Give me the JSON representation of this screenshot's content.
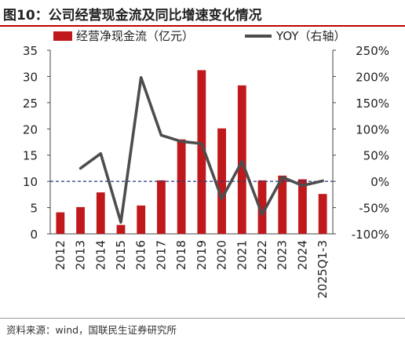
{
  "header": {
    "title": "图10：公司经营现金流及同比增速变化情况"
  },
  "footer": {
    "source": "资料来源：wind，国联民生证券研究所"
  },
  "chart_data": {
    "type": "bar+line",
    "categories": [
      "2012",
      "2013",
      "2014",
      "2015",
      "2016",
      "2017",
      "2018",
      "2019",
      "2020",
      "2021",
      "2022",
      "2023",
      "2024",
      "2025Q1-3"
    ],
    "series": [
      {
        "name": "经营净现金流（亿元）",
        "type": "bar",
        "axis": "left",
        "color": "#c0191c",
        "values": [
          4.1,
          5.1,
          7.9,
          1.7,
          5.4,
          10.2,
          18.0,
          31.2,
          20.1,
          28.3,
          10.2,
          11.1,
          10.4,
          7.6
        ]
      },
      {
        "name": "YOY（右轴）",
        "type": "line",
        "axis": "right",
        "color": "#4d4d4d",
        "values": [
          null,
          25,
          53,
          -78,
          198,
          88,
          76,
          72,
          -33,
          38,
          -63,
          8,
          -8,
          1
        ]
      }
    ],
    "left_axis": {
      "min": 0,
      "max": 35,
      "ticks": [
        "0",
        "5",
        "10",
        "15",
        "20",
        "25",
        "30",
        "35"
      ]
    },
    "right_axis": {
      "min": -100,
      "max": 250,
      "ticks": [
        "-100%",
        "-50%",
        "0%",
        "50%",
        "100%",
        "150%",
        "200%",
        "250%"
      ]
    },
    "reference_line": {
      "value": 10,
      "axis": "left",
      "style": "dashed",
      "color": "#1f3a78"
    },
    "legend": {
      "placement": "top"
    }
  }
}
